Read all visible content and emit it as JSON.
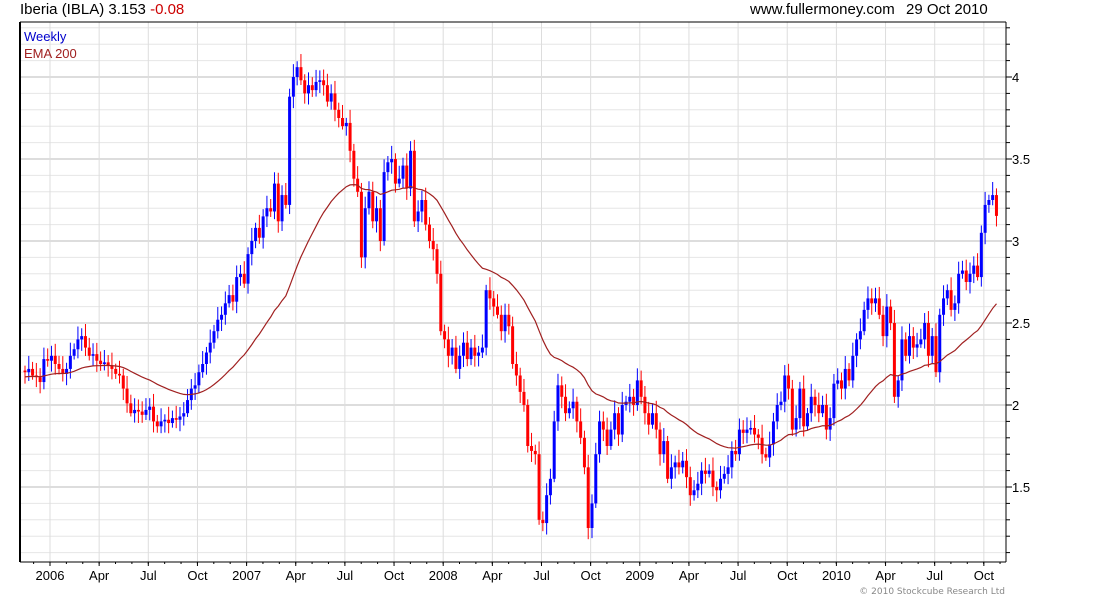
{
  "header": {
    "title": "Iberia (IBLA) 3.153",
    "change": "-0.08",
    "website": "www.fullermoney.com",
    "date": "29 Oct 2010"
  },
  "footer": {
    "copyright": "© 2010 Stockcube Research Ltd"
  },
  "colors": {
    "up": "#0000ff",
    "down": "#ff0000",
    "ema": "#a02020",
    "legend_weekly": "#0000cc",
    "change": "#cc0000"
  },
  "chart_data": {
    "type": "candlestick",
    "title": "Iberia (IBLA) 3.153 -0.08",
    "legend": [
      "Weekly",
      "EMA 200"
    ],
    "legend_placement": "top-left",
    "ema_period_weeks": 40,
    "ema_seed": 2.17,
    "ylim": [
      1.04,
      4.33
    ],
    "yticks": [
      "1.5",
      "2",
      "2.5",
      "3",
      "3.5",
      "4"
    ],
    "ytick_values": [
      1.5,
      2,
      2.5,
      3,
      3.5,
      4
    ],
    "xtick_labels": [
      "2006",
      "Apr",
      "Jul",
      "Oct",
      "2007",
      "Apr",
      "Jul",
      "Oct",
      "2008",
      "Apr",
      "Jul",
      "Oct",
      "2009",
      "Apr",
      "Jul",
      "Oct",
      "2010",
      "Apr",
      "Jul",
      "Oct"
    ],
    "grid": true,
    "first_open": 2.21,
    "weekly_close": [
      2.2,
      2.22,
      2.18,
      2.17,
      2.14,
      2.28,
      2.27,
      2.3,
      2.25,
      2.22,
      2.19,
      2.22,
      2.3,
      2.34,
      2.4,
      2.42,
      2.35,
      2.3,
      2.31,
      2.27,
      2.25,
      2.26,
      2.24,
      2.22,
      2.19,
      2.18,
      2.1,
      2.01,
      1.95,
      1.97,
      1.96,
      1.94,
      1.97,
      1.99,
      1.9,
      1.87,
      1.9,
      1.91,
      1.89,
      1.92,
      1.91,
      1.93,
      1.95,
      2.03,
      2.1,
      2.12,
      2.2,
      2.25,
      2.32,
      2.38,
      2.45,
      2.52,
      2.55,
      2.62,
      2.67,
      2.63,
      2.78,
      2.8,
      2.74,
      2.92,
      3.0,
      3.08,
      3.02,
      3.15,
      3.2,
      3.18,
      3.35,
      3.12,
      3.28,
      3.22,
      3.88,
      4.0,
      4.06,
      3.98,
      3.9,
      3.95,
      3.92,
      3.97,
      3.98,
      3.95,
      3.85,
      3.9,
      3.8,
      3.75,
      3.7,
      3.72,
      3.55,
      3.38,
      3.3,
      2.9,
      3.2,
      3.3,
      3.12,
      3.2,
      3.0,
      3.42,
      3.48,
      3.5,
      3.35,
      3.38,
      3.46,
      3.32,
      3.55,
      3.12,
      3.18,
      3.25,
      3.1,
      3.0,
      2.95,
      2.8,
      2.45,
      2.4,
      2.3,
      2.35,
      2.22,
      2.3,
      2.38,
      2.28,
      2.35,
      2.3,
      2.32,
      2.35,
      2.7,
      2.65,
      2.6,
      2.55,
      2.45,
      2.55,
      2.48,
      2.25,
      2.18,
      2.08,
      2.0,
      1.75,
      1.72,
      1.7,
      1.3,
      1.28,
      1.45,
      1.55,
      1.9,
      2.12,
      2.05,
      1.95,
      1.98,
      2.02,
      1.9,
      1.8,
      1.62,
      1.25,
      1.4,
      1.7,
      1.9,
      1.85,
      1.75,
      1.85,
      1.95,
      1.82,
      2.0,
      2.02,
      2.05,
      2.0,
      2.15,
      2.05,
      1.95,
      1.88,
      1.95,
      1.85,
      1.7,
      1.78,
      1.55,
      1.62,
      1.65,
      1.62,
      1.66,
      1.56,
      1.45,
      1.48,
      1.52,
      1.6,
      1.58,
      1.6,
      1.5,
      1.48,
      1.55,
      1.58,
      1.62,
      1.72,
      1.7,
      1.85,
      1.83,
      1.85,
      1.86,
      1.82,
      1.8,
      1.7,
      1.68,
      1.76,
      1.9,
      2.0,
      2.02,
      2.18,
      2.1,
      1.85,
      1.92,
      2.1,
      1.87,
      1.95,
      2.05,
      2.0,
      1.95,
      2.0,
      1.85,
      1.92,
      2.13,
      2.15,
      2.1,
      2.22,
      2.15,
      2.3,
      2.4,
      2.45,
      2.58,
      2.65,
      2.62,
      2.65,
      2.55,
      2.42,
      2.6,
      2.5,
      2.05,
      2.15,
      2.4,
      2.3,
      2.42,
      2.35,
      2.37,
      2.4,
      2.5,
      2.3,
      2.42,
      2.2,
      2.55,
      2.65,
      2.7,
      2.58,
      2.62,
      2.8,
      2.82,
      2.75,
      2.8,
      2.85,
      2.78,
      3.05,
      3.22,
      3.25,
      3.28,
      3.153
    ]
  }
}
